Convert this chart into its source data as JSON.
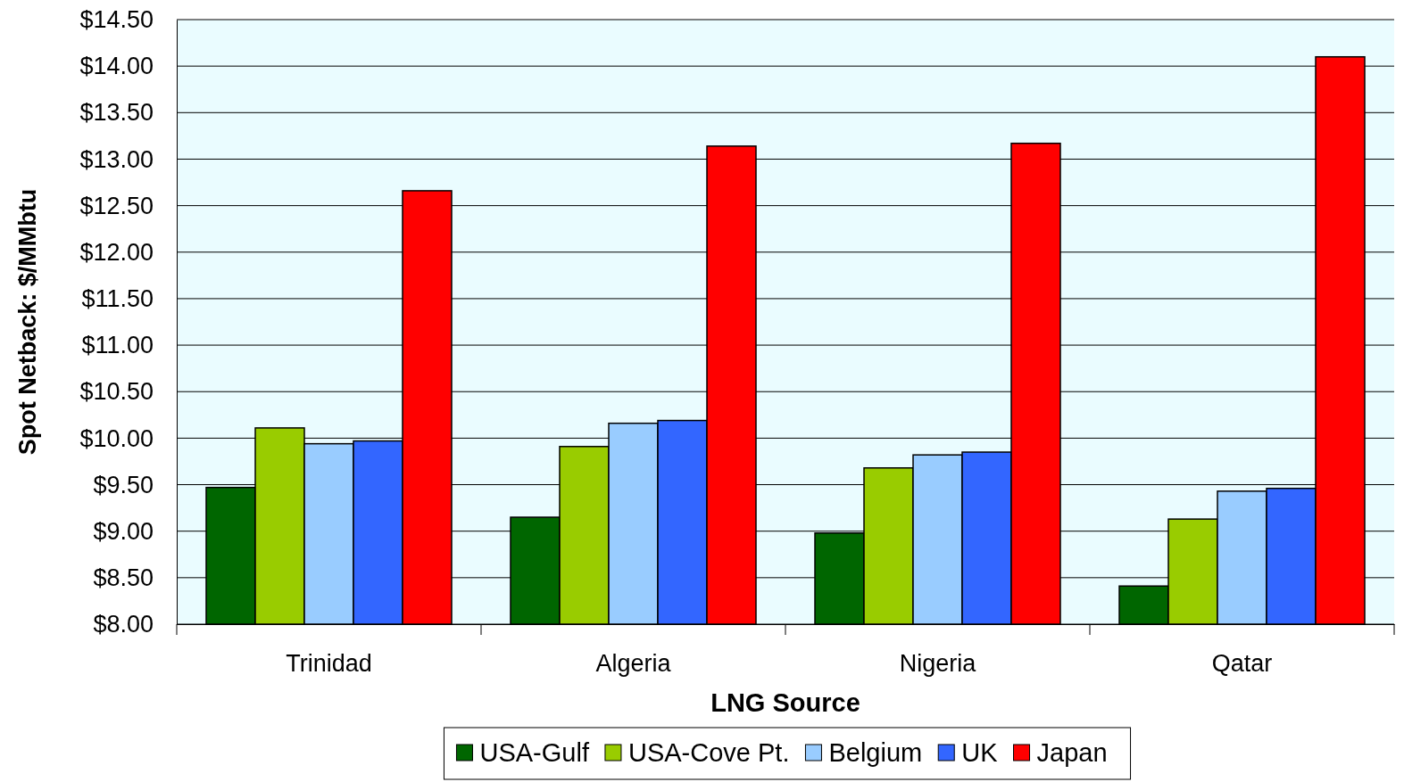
{
  "chart_data": {
    "type": "bar",
    "xlabel": "LNG Source",
    "ylabel": "Spot Netback: $/MMbtu",
    "categories": [
      "Trinidad",
      "Algeria",
      "Nigeria",
      "Qatar"
    ],
    "series": [
      {
        "name": "USA-Gulf",
        "color": "#006600",
        "values": [
          9.47,
          9.15,
          8.98,
          8.41
        ]
      },
      {
        "name": "USA-Cove Pt.",
        "color": "#99cc00",
        "values": [
          10.11,
          9.91,
          9.68,
          9.13
        ]
      },
      {
        "name": "Belgium",
        "color": "#99ccff",
        "values": [
          9.94,
          10.16,
          9.82,
          9.43
        ]
      },
      {
        "name": "UK",
        "color": "#3366ff",
        "values": [
          9.97,
          10.19,
          9.85,
          9.46
        ]
      },
      {
        "name": "Japan",
        "color": "#ff0000",
        "values": [
          12.66,
          13.14,
          13.17,
          14.1
        ]
      }
    ],
    "ylim": [
      8,
      14.5
    ],
    "yticks": [
      {
        "value": 8,
        "label": "$8.00"
      },
      {
        "value": 8.5,
        "label": "$8.50"
      },
      {
        "value": 9,
        "label": "$9.00"
      },
      {
        "value": 9.5,
        "label": "$9.50"
      },
      {
        "value": 10,
        "label": "$10.00"
      },
      {
        "value": 10.5,
        "label": "$10.50"
      },
      {
        "value": 11,
        "label": "$11.00"
      },
      {
        "value": 11.5,
        "label": "$11.50"
      },
      {
        "value": 12,
        "label": "$12.00"
      },
      {
        "value": 12.5,
        "label": "$12.50"
      },
      {
        "value": 13,
        "label": "$13.00"
      },
      {
        "value": 13.5,
        "label": "$13.50"
      },
      {
        "value": 14,
        "label": "$14.00"
      },
      {
        "value": 14.5,
        "label": "$14.50"
      }
    ],
    "grid": "y",
    "legend": "bottom"
  }
}
